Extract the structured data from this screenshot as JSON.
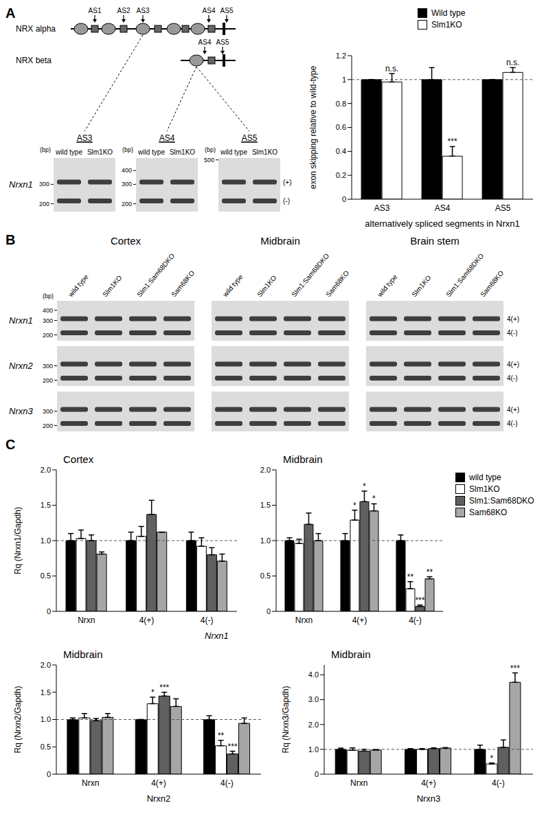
{
  "panel_labels": [
    "A",
    "B",
    "C"
  ],
  "diagram": {
    "isoforms": [
      "NRX alpha",
      "NRX beta"
    ],
    "alpha_sites": [
      "AS1",
      "AS2",
      "AS3",
      "AS4",
      "AS5"
    ],
    "beta_sites": [
      "AS4",
      "AS5"
    ]
  },
  "gels_a": {
    "row_label": "Nrxn1",
    "unit": "(bp)",
    "lanes": [
      "wild type",
      "Slm1KO"
    ],
    "gels": [
      {
        "title": "AS3",
        "markers": [
          300,
          200
        ]
      },
      {
        "title": "AS4",
        "markers": [
          400,
          300,
          200
        ]
      },
      {
        "title": "AS5",
        "markers": [
          500
        ],
        "band_labels": [
          "(+)",
          "(-)"
        ]
      }
    ]
  },
  "gels_b": {
    "unit": "(bp)",
    "regions": [
      "Cortex",
      "Midbrain",
      "Brain stem"
    ],
    "lanes": [
      "wild type",
      "Slm1KO",
      "Slm1:Sam68DKO",
      "Sam68KO"
    ],
    "rows": [
      {
        "gene": "Nrxn1",
        "markers": [
          400,
          300,
          200
        ]
      },
      {
        "gene": "Nrxn2",
        "markers": [
          300,
          200
        ]
      },
      {
        "gene": "Nrxn3",
        "markers": [
          300,
          200
        ]
      }
    ],
    "band_labels": [
      "4(+)",
      "4(-)"
    ]
  },
  "panel_c_group_label": "Nrxn1",
  "chart_data": [
    {
      "type": "bar",
      "categories": [
        "AS3",
        "AS4",
        "AS5"
      ],
      "series": [
        {
          "name": "Wild type",
          "color": "#000000",
          "values": [
            1,
            1,
            1
          ],
          "errors": [
            0,
            0.1,
            0
          ]
        },
        {
          "name": "Slm1KO",
          "color": "#ffffff",
          "values": [
            0.98,
            0.36,
            1.06
          ],
          "errors": [
            0.07,
            0.08,
            0.04
          ],
          "annotations": [
            "n.s.",
            "***",
            "n.s."
          ]
        }
      ],
      "ylim": [
        0,
        1.2
      ],
      "yticks": [
        0,
        0.2,
        0.4,
        0.6,
        0.8,
        1,
        1.2
      ],
      "y_label": "exon skipping relative to wild-type",
      "x_label": "alternatively spliced segments in Nrxn1",
      "reference_line": 1,
      "legend": "top right"
    },
    {
      "type": "bar",
      "title": "Cortex",
      "categories": [
        "Nrxn",
        "4(+)",
        "4(-)"
      ],
      "series": [
        {
          "name": "wild type",
          "color": "#000000",
          "values": [
            1.0,
            1.0,
            1.0
          ],
          "errors": [
            0.1,
            0.12,
            0.12
          ]
        },
        {
          "name": "Slm1KO",
          "color": "#ffffff",
          "values": [
            1.03,
            1.06,
            0.92
          ],
          "errors": [
            0.12,
            0.14,
            0.12
          ]
        },
        {
          "name": "Slm1:Sam68DKO",
          "color": "#606060",
          "values": [
            1.0,
            1.37,
            0.8
          ],
          "errors": [
            0.08,
            0.2,
            0.1
          ]
        },
        {
          "name": "Sam68KO",
          "color": "#a6a6a6",
          "values": [
            0.81,
            1.12,
            0.71
          ],
          "errors": [
            0.03,
            0,
            0.1
          ]
        }
      ],
      "ylim": [
        0,
        2
      ],
      "yticks": [
        0,
        0.5,
        {
          "value": 1,
          "label": "1.0"
        },
        1.5,
        {
          "value": 2,
          "label": "2.0"
        }
      ],
      "y_label": "Rq (Nrxn1/Gapdh)",
      "reference_line": 1
    },
    {
      "type": "bar",
      "title": "Midbrain",
      "categories": [
        "Nrxn",
        "4(+)",
        "4(-)"
      ],
      "series": [
        {
          "name": "wild type",
          "color": "#000000",
          "values": [
            1.0,
            1.0,
            1.0
          ],
          "errors": [
            0.04,
            0.1,
            0.08
          ]
        },
        {
          "name": "Slm1KO",
          "color": "#ffffff",
          "values": [
            0.96,
            1.29,
            0.32
          ],
          "errors": [
            0.06,
            0.14,
            0.1
          ],
          "annotations": [
            null,
            "*",
            "**"
          ]
        },
        {
          "name": "Slm1:Sam68DKO",
          "color": "#606060",
          "values": [
            1.23,
            1.55,
            0.07
          ],
          "errors": [
            0.16,
            0.15,
            0.02
          ],
          "annotations": [
            null,
            "*",
            "***"
          ]
        },
        {
          "name": "Sam68KO",
          "color": "#a6a6a6",
          "values": [
            1.0,
            1.42,
            0.46
          ],
          "errors": [
            0.1,
            0.1,
            0.03
          ],
          "annotations": [
            null,
            "*",
            "**"
          ]
        }
      ],
      "ylim": [
        0,
        2
      ],
      "yticks": [
        0,
        0.5,
        {
          "value": 1,
          "label": "1.0"
        },
        1.5,
        {
          "value": 2,
          "label": "2.0"
        }
      ],
      "reference_line": 1,
      "legend": "top right"
    },
    {
      "type": "bar",
      "title": "Midbrain",
      "categories": [
        "Nrxn",
        "4(+)",
        "4(-)"
      ],
      "series": [
        {
          "name": "wild type",
          "color": "#000000",
          "values": [
            1.0,
            1.0,
            1.0
          ],
          "errors": [
            0.03,
            0,
            0.07
          ]
        },
        {
          "name": "Slm1KO",
          "color": "#ffffff",
          "values": [
            1.03,
            1.29,
            0.52
          ],
          "errors": [
            0.08,
            0.12,
            0.1
          ],
          "annotations": [
            null,
            "*",
            "**"
          ]
        },
        {
          "name": "Slm1:Sam68DKO",
          "color": "#606060",
          "values": [
            0.98,
            1.43,
            0.37
          ],
          "errors": [
            0.04,
            0.07,
            0.05
          ],
          "annotations": [
            null,
            "***",
            "***"
          ]
        },
        {
          "name": "Sam68KO",
          "color": "#a6a6a6",
          "values": [
            1.04,
            1.24,
            0.93
          ],
          "errors": [
            0.07,
            0.14,
            0.1
          ]
        }
      ],
      "ylim": [
        0,
        2
      ],
      "yticks": [
        0,
        0.5,
        {
          "value": 1,
          "label": "1.0"
        },
        1.5,
        {
          "value": 2,
          "label": "2.0"
        }
      ],
      "y_label": "Rq (Nrxn2/Gapdh)",
      "x_label": "Nrxn2",
      "reference_line": 1
    },
    {
      "type": "bar",
      "title": "Midbrain",
      "categories": [
        "Nrxn",
        "4(+)",
        "4(-)"
      ],
      "series": [
        {
          "name": "wild type",
          "color": "#000000",
          "values": [
            1.0,
            1.0,
            1.0
          ],
          "errors": [
            0.05,
            0.03,
            0.17
          ]
        },
        {
          "name": "Slm1KO",
          "color": "#ffffff",
          "values": [
            0.96,
            1.0,
            0.41
          ],
          "errors": [
            0.1,
            0.03,
            0.04
          ],
          "annotations": [
            null,
            null,
            "*"
          ]
        },
        {
          "name": "Slm1:Sam68DKO",
          "color": "#606060",
          "values": [
            0.93,
            1.03,
            1.08
          ],
          "errors": [
            0.07,
            0.03,
            0.3
          ]
        },
        {
          "name": "Sam68KO",
          "color": "#a6a6a6",
          "values": [
            0.97,
            1.05,
            3.7
          ],
          "errors": [
            0.02,
            0.02,
            0.38
          ],
          "annotations": [
            null,
            null,
            "***"
          ]
        }
      ],
      "ylim": [
        0,
        4.4
      ],
      "yticks": [
        0,
        {
          "value": 1,
          "label": "1.0"
        },
        {
          "value": 2,
          "label": "2.0"
        },
        {
          "value": 3,
          "label": "3.0"
        },
        {
          "value": 4,
          "label": "4.0"
        }
      ],
      "y_label": "Rq (Nrxn3/Gapdh)",
      "x_label": "Nrxn3",
      "reference_line": 1
    }
  ]
}
